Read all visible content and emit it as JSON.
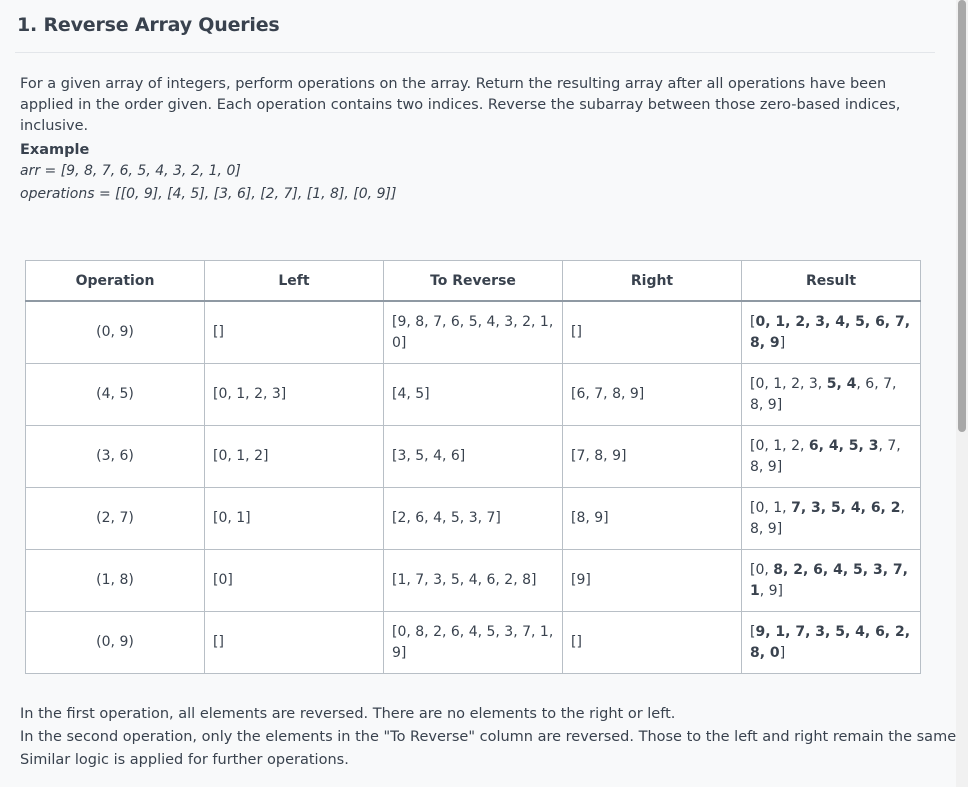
{
  "title": "1. Reverse Array Queries",
  "description": "For a given array of integers, perform operations on the array. Return the resulting array after all operations have been applied in the order given. Each operation contains two indices. Reverse the subarray between those zero-based indices, inclusive.",
  "example": {
    "heading": "Example",
    "arr_line": "arr = [9, 8, 7, 6, 5, 4, 3, 2, 1, 0]",
    "operations_line": "operations = [[0, 9], [4, 5], [3, 6], [2, 7], [1, 8], [0, 9]]"
  },
  "table": {
    "headers": [
      "Operation",
      "Left",
      "To Reverse",
      "Right",
      "Result"
    ],
    "rows": [
      {
        "operation": "(0, 9)",
        "left": "[]",
        "to_reverse": "[9, 8, 7, 6, 5, 4, 3, 2, 1, 0]",
        "right": "[]",
        "result_parts": [
          {
            "text": "[",
            "bold": false
          },
          {
            "text": "0, 1, 2, 3, 4, 5, 6, 7, 8, 9",
            "bold": true
          },
          {
            "text": "]",
            "bold": false
          }
        ]
      },
      {
        "operation": "(4, 5)",
        "left": "[0, 1, 2, 3]",
        "to_reverse": "[4, 5]",
        "right": "[6, 7, 8, 9]",
        "result_parts": [
          {
            "text": "[0, 1, 2, 3, ",
            "bold": false
          },
          {
            "text": "5, 4",
            "bold": true
          },
          {
            "text": ", 6, 7, 8, 9]",
            "bold": false
          }
        ]
      },
      {
        "operation": "(3, 6)",
        "left": "[0, 1, 2]",
        "to_reverse": "[3, 5, 4, 6]",
        "right": "[7, 8, 9]",
        "result_parts": [
          {
            "text": "[0, 1, 2, ",
            "bold": false
          },
          {
            "text": "6, 4, 5, 3",
            "bold": true
          },
          {
            "text": ", 7, 8, 9]",
            "bold": false
          }
        ]
      },
      {
        "operation": "(2, 7)",
        "left": "[0, 1]",
        "to_reverse": "[2, 6, 4, 5, 3, 7]",
        "right": "[8, 9]",
        "result_parts": [
          {
            "text": "[0, 1, ",
            "bold": false
          },
          {
            "text": "7, 3, 5, 4, 6, 2",
            "bold": true
          },
          {
            "text": ", 8, 9]",
            "bold": false
          }
        ]
      },
      {
        "operation": "(1, 8)",
        "left": "[0]",
        "to_reverse": "[1, 7, 3, 5, 4, 6, 2, 8]",
        "right": "[9]",
        "result_parts": [
          {
            "text": "[0, ",
            "bold": false
          },
          {
            "text": "8, 2, 6, 4, 5, 3, 7, 1",
            "bold": true
          },
          {
            "text": ", 9]",
            "bold": false
          }
        ]
      },
      {
        "operation": "(0, 9)",
        "left": "[]",
        "to_reverse": "[0, 8, 2, 6, 4, 5, 3, 7, 1, 9]",
        "right": "[]",
        "result_parts": [
          {
            "text": "[",
            "bold": false
          },
          {
            "text": "9, 1, 7, 3, 5, 4, 6, 2, 8, 0",
            "bold": true
          },
          {
            "text": "]",
            "bold": false
          }
        ]
      }
    ]
  },
  "explanation": [
    "In the first operation, all elements are reversed. There are no elements to the right or left.",
    "In the second operation, only the elements in the \"To Reverse\" column are reversed. Those to the left and right remain the same.",
    "Similar logic is applied for further operations."
  ]
}
